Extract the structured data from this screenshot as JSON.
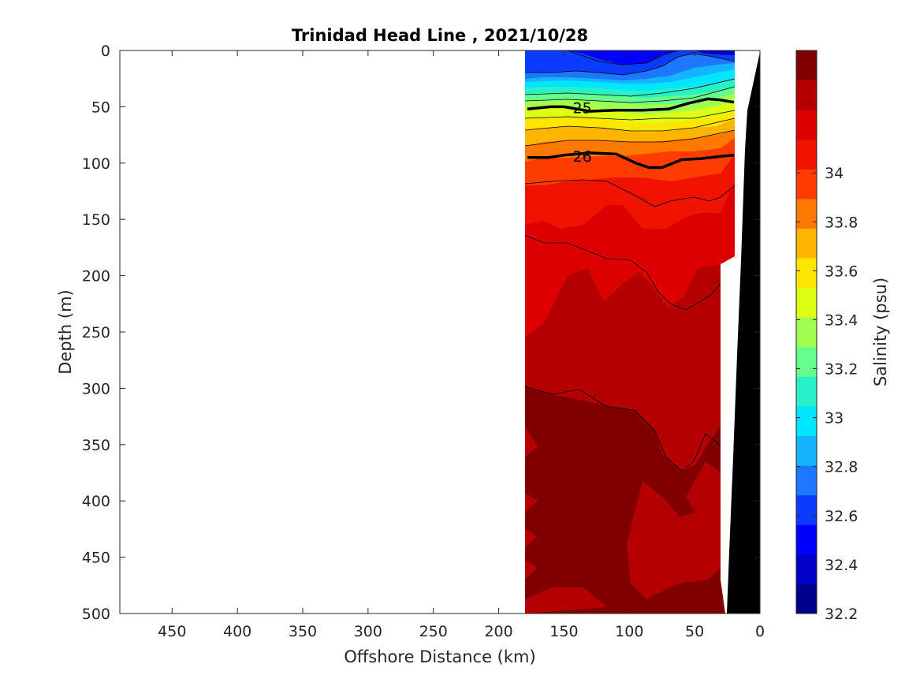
{
  "chart_data": {
    "type": "contour",
    "title": "Trinidad Head Line , 2021/10/28",
    "xlabel": "Offshore Distance (km)",
    "ylabel": "Depth (m)",
    "xlim": [
      490,
      0
    ],
    "ylim": [
      0,
      500
    ],
    "x_ticks": [
      450,
      400,
      350,
      300,
      250,
      200,
      150,
      100,
      50,
      0
    ],
    "y_ticks": [
      0,
      50,
      100,
      150,
      200,
      250,
      300,
      350,
      400,
      450,
      500
    ],
    "colorbar": {
      "label": "Salinity (psu)",
      "range": [
        32.2,
        34.5
      ],
      "ticks": [
        32.2,
        32.4,
        32.6,
        32.8,
        33,
        33.2,
        33.4,
        33.6,
        33.8,
        34
      ],
      "level_colors": [
        "#00008f",
        "#0000c8",
        "#0000ff",
        "#0a3cff",
        "#1e78ff",
        "#14b4ff",
        "#00e6ff",
        "#28f0c8",
        "#64ff8c",
        "#a0ff50",
        "#dcff14",
        "#ffe600",
        "#ffb400",
        "#ff7800",
        "#ff3c00",
        "#f01400",
        "#dc0000",
        "#b40000",
        "#800000"
      ]
    },
    "density_contours": [
      {
        "label": "25",
        "points": [
          [
            178,
            52
          ],
          [
            160,
            50
          ],
          [
            150,
            50
          ],
          [
            130,
            54
          ],
          [
            110,
            53
          ],
          [
            90,
            53
          ],
          [
            70,
            52
          ],
          [
            55,
            47
          ],
          [
            40,
            43
          ],
          [
            30,
            44
          ],
          [
            20,
            46
          ]
        ]
      },
      {
        "label": "26",
        "points": [
          [
            178,
            95
          ],
          [
            162,
            95
          ],
          [
            150,
            93
          ],
          [
            130,
            91
          ],
          [
            110,
            92
          ],
          [
            95,
            100
          ],
          [
            85,
            104
          ],
          [
            75,
            104
          ],
          [
            60,
            97
          ],
          [
            45,
            96
          ],
          [
            30,
            94
          ],
          [
            20,
            93
          ]
        ]
      }
    ],
    "annotations": [
      "25",
      "26"
    ]
  }
}
